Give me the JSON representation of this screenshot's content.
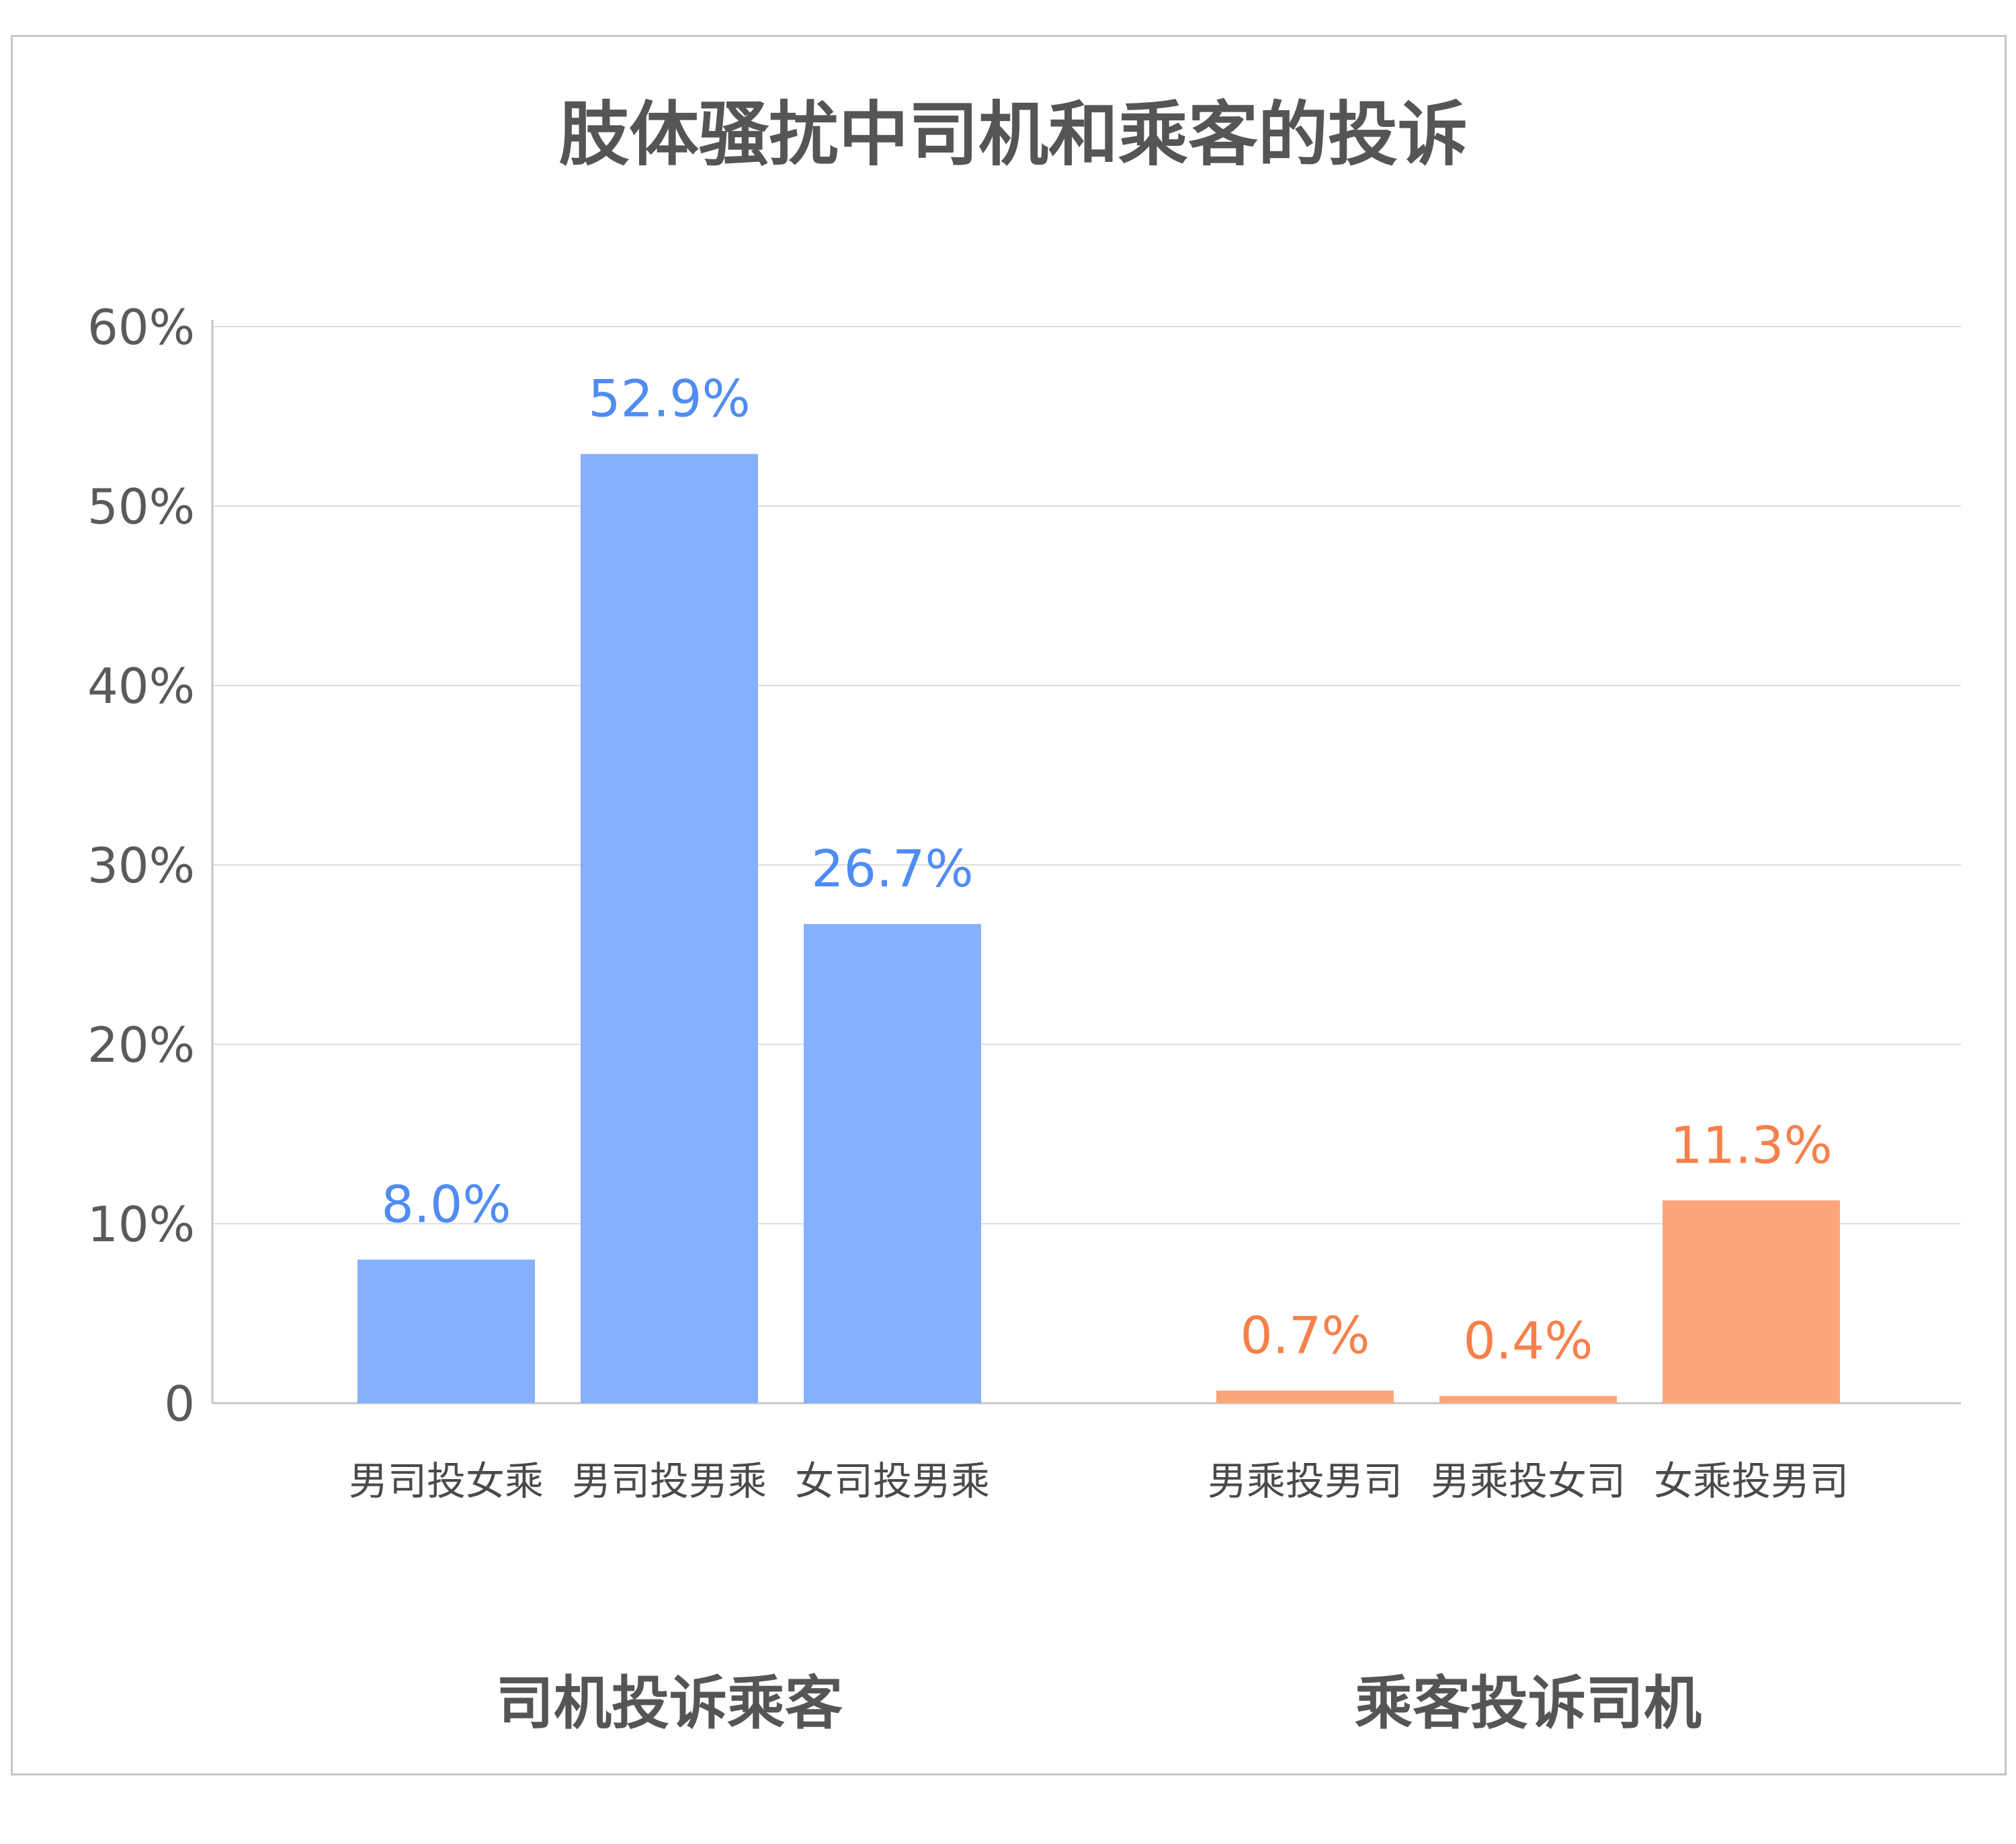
{
  "chart_data": {
    "type": "bar",
    "title": "肢体骚扰中司机和乘客的投诉",
    "y_ticks": [
      "0",
      "10%",
      "20%",
      "30%",
      "40%",
      "50%",
      "60%"
    ],
    "ylim": [
      0,
      60
    ],
    "grid": true,
    "groups": [
      {
        "name": "司机投诉乘客",
        "color": "#86b0fb",
        "label_color": "#4f8cf3",
        "categories": [
          "男司投女乘",
          "男司投男乘",
          "女司投男乘"
        ],
        "values": [
          8.0,
          52.9,
          26.7
        ],
        "data_labels": [
          "8.0%",
          "52.9%",
          "26.7%"
        ]
      },
      {
        "name": "乘客投诉司机",
        "color": "#fca57b",
        "label_color": "#f7804a",
        "categories": [
          "男乘投男司",
          "男乘投女司",
          "女乘投男司"
        ],
        "values": [
          0.7,
          0.4,
          11.3
        ],
        "data_labels": [
          "0.7%",
          "0.4%",
          "11.3%"
        ]
      }
    ]
  }
}
